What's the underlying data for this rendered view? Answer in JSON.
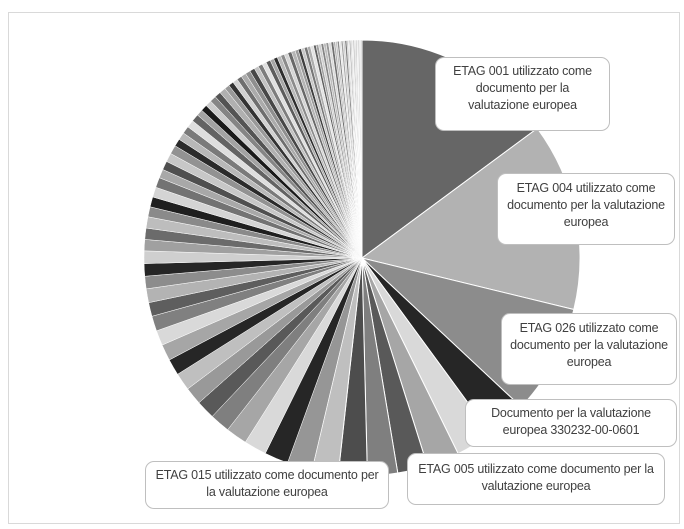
{
  "chart_data": {
    "type": "pie",
    "slices": [
      {
        "label": "ETAG 001 utilizzato come documento per la valutazione europea",
        "value": 16.0,
        "color": "#666666"
      },
      {
        "label": "ETAG 004 utilizzato come documento per la valutazione europea",
        "value": 15.0,
        "color": "#b2b2b2"
      },
      {
        "label": "ETAG 026 utilizzato come documento per la valutazione europea",
        "value": 8.8,
        "color": "#8c8c8c"
      },
      {
        "label": "Documento per la valutazione europea 330232-00-0601",
        "value": 3.2,
        "color": "#262626"
      },
      {
        "label": "ETAG 005 utilizzato come documento per la valutazione europea",
        "value": 3.0,
        "color": "#d9d9d9"
      },
      {
        "label": "",
        "value": 2.6,
        "color": "#a6a6a6"
      },
      {
        "label": "",
        "value": 2.4,
        "color": "#595959"
      },
      {
        "label": "",
        "value": 2.4,
        "color": "#7f7f7f"
      },
      {
        "label": "ETAG 015 utilizzato come documento per la valutazione europea",
        "value": 2.3,
        "color": "#4d4d4d"
      },
      {
        "label": "",
        "value": 2.1,
        "color": "#bfbfbf"
      },
      {
        "label": "",
        "value": 2.0,
        "color": "#969696"
      },
      {
        "label": "",
        "value": 1.9,
        "color": "#262626"
      },
      {
        "label": "",
        "value": 1.8,
        "color": "#d9d9d9"
      },
      {
        "label": "",
        "value": 1.7,
        "color": "#a6a6a6"
      },
      {
        "label": "",
        "value": 1.6,
        "color": "#7f7f7f"
      },
      {
        "label": "",
        "value": 1.5,
        "color": "#595959"
      },
      {
        "label": "",
        "value": 1.4,
        "color": "#999999"
      },
      {
        "label": "",
        "value": 1.4,
        "color": "#bfbfbf"
      },
      {
        "label": "",
        "value": 1.3,
        "color": "#262626"
      },
      {
        "label": "",
        "value": 1.3,
        "color": "#a6a6a6"
      },
      {
        "label": "",
        "value": 1.2,
        "color": "#d9d9d9"
      },
      {
        "label": "",
        "value": 1.2,
        "color": "#808080"
      },
      {
        "label": "",
        "value": 1.1,
        "color": "#5e5e5e"
      },
      {
        "label": "",
        "value": 1.1,
        "color": "#b3b3b3"
      },
      {
        "label": "",
        "value": 1.0,
        "color": "#8c8c8c"
      },
      {
        "label": "",
        "value": 1.0,
        "color": "#262626"
      },
      {
        "label": "",
        "value": 1.0,
        "color": "#cfcfcf"
      },
      {
        "label": "",
        "value": 0.9,
        "color": "#a0a0a0"
      },
      {
        "label": "",
        "value": 0.9,
        "color": "#6b6b6b"
      },
      {
        "label": "",
        "value": 0.9,
        "color": "#bdbdbd"
      },
      {
        "label": "",
        "value": 0.8,
        "color": "#8a8a8a"
      },
      {
        "label": "",
        "value": 0.8,
        "color": "#1f1f1f"
      },
      {
        "label": "",
        "value": 0.8,
        "color": "#d4d4d4"
      },
      {
        "label": "",
        "value": 0.8,
        "color": "#737373"
      },
      {
        "label": "",
        "value": 0.7,
        "color": "#a8a8a8"
      },
      {
        "label": "",
        "value": 0.7,
        "color": "#4f4f4f"
      },
      {
        "label": "",
        "value": 0.7,
        "color": "#c7c7c7"
      },
      {
        "label": "",
        "value": 0.7,
        "color": "#929292"
      },
      {
        "label": "",
        "value": 0.6,
        "color": "#2b2b2b"
      },
      {
        "label": "",
        "value": 0.6,
        "color": "#b8b8b8"
      },
      {
        "label": "",
        "value": 0.6,
        "color": "#7a7a7a"
      },
      {
        "label": "",
        "value": 0.6,
        "color": "#dedede"
      },
      {
        "label": "",
        "value": 0.6,
        "color": "#636363"
      },
      {
        "label": "",
        "value": 0.5,
        "color": "#a3a3a3"
      },
      {
        "label": "",
        "value": 0.5,
        "color": "#1a1a1a"
      },
      {
        "label": "",
        "value": 0.5,
        "color": "#cccccc"
      },
      {
        "label": "",
        "value": 0.5,
        "color": "#858585"
      },
      {
        "label": "",
        "value": 0.5,
        "color": "#545454"
      },
      {
        "label": "",
        "value": 0.5,
        "color": "#b0b0b0"
      },
      {
        "label": "",
        "value": 0.4,
        "color": "#999999"
      },
      {
        "label": "",
        "value": 0.4,
        "color": "#333333"
      },
      {
        "label": "",
        "value": 0.4,
        "color": "#d1d1d1"
      },
      {
        "label": "",
        "value": 0.4,
        "color": "#6e6e6e"
      },
      {
        "label": "",
        "value": 0.4,
        "color": "#ababab"
      },
      {
        "label": "",
        "value": 0.4,
        "color": "#8f8f8f"
      },
      {
        "label": "",
        "value": 0.4,
        "color": "#474747"
      },
      {
        "label": "",
        "value": 0.35,
        "color": "#c2c2c2"
      },
      {
        "label": "",
        "value": 0.35,
        "color": "#7d7d7d"
      },
      {
        "label": "",
        "value": 0.35,
        "color": "#e0e0e0"
      },
      {
        "label": "",
        "value": 0.35,
        "color": "#5c5c5c"
      },
      {
        "label": "",
        "value": 0.3,
        "color": "#a6a6a6"
      },
      {
        "label": "",
        "value": 0.3,
        "color": "#2e2e2e"
      },
      {
        "label": "",
        "value": 0.3,
        "color": "#bababa"
      },
      {
        "label": "",
        "value": 0.3,
        "color": "#8c8c8c"
      },
      {
        "label": "",
        "value": 0.3,
        "color": "#d6d6d6"
      },
      {
        "label": "",
        "value": 0.3,
        "color": "#696969"
      },
      {
        "label": "",
        "value": 0.3,
        "color": "#b5b5b5"
      },
      {
        "label": "",
        "value": 0.25,
        "color": "#9c9c9c"
      },
      {
        "label": "",
        "value": 0.25,
        "color": "#404040"
      },
      {
        "label": "",
        "value": 0.25,
        "color": "#c9c9c9"
      },
      {
        "label": "",
        "value": 0.25,
        "color": "#787878"
      },
      {
        "label": "",
        "value": 0.25,
        "color": "#adadad"
      },
      {
        "label": "",
        "value": 0.25,
        "color": "#e3e3e3"
      },
      {
        "label": "",
        "value": 0.2,
        "color": "#616161"
      },
      {
        "label": "",
        "value": 0.2,
        "color": "#a1a1a1"
      },
      {
        "label": "",
        "value": 0.2,
        "color": "#cfcfcf"
      },
      {
        "label": "",
        "value": 0.2,
        "color": "#858585"
      },
      {
        "label": "",
        "value": 0.2,
        "color": "#bdbdbd"
      },
      {
        "label": "",
        "value": 0.2,
        "color": "#969696"
      },
      {
        "label": "",
        "value": 0.2,
        "color": "#dbdbdb"
      },
      {
        "label": "",
        "value": 0.2,
        "color": "#707070"
      },
      {
        "label": "",
        "value": 0.15,
        "color": "#b0b0b0"
      },
      {
        "label": "",
        "value": 0.15,
        "color": "#c4c4c4"
      },
      {
        "label": "",
        "value": 0.15,
        "color": "#8a8a8a"
      },
      {
        "label": "",
        "value": 0.15,
        "color": "#e6e6e6"
      },
      {
        "label": "",
        "value": 0.15,
        "color": "#a3a3a3"
      },
      {
        "label": "",
        "value": 0.15,
        "color": "#d1d1d1"
      },
      {
        "label": "",
        "value": 0.15,
        "color": "#7a7a7a"
      },
      {
        "label": "",
        "value": 0.1,
        "color": "#bababa"
      },
      {
        "label": "",
        "value": 0.1,
        "color": "#dedede"
      },
      {
        "label": "",
        "value": 0.1,
        "color": "#999999"
      },
      {
        "label": "",
        "value": 0.1,
        "color": "#cccccc"
      },
      {
        "label": "",
        "value": 0.1,
        "color": "#e8e8e8"
      },
      {
        "label": "",
        "value": 0.1,
        "color": "#adadad"
      },
      {
        "label": "",
        "value": 0.1,
        "color": "#d9d9d9"
      },
      {
        "label": "",
        "value": 0.1,
        "color": "#c2c2c2"
      },
      {
        "label": "",
        "value": 0.1,
        "color": "#ebebeb"
      },
      {
        "label": "",
        "value": 0.1,
        "color": "#b8b8b8"
      },
      {
        "label": "",
        "value": 0.1,
        "color": "#e0e0e0"
      },
      {
        "label": "",
        "value": 0.1,
        "color": "#d4d4d4"
      }
    ],
    "data_labels": [
      {
        "slice": 0,
        "text": "ETAG 001 utilizzato come documento per la valutazione europea"
      },
      {
        "slice": 1,
        "text": "ETAG 004 utilizzato come documento per la valutazione europea"
      },
      {
        "slice": 2,
        "text": "ETAG 026 utilizzato come documento per la valutazione europea"
      },
      {
        "slice": 3,
        "text": "Documento per la valutazione europea 330232-00-0601"
      },
      {
        "slice": 4,
        "text": "ETAG 005 utilizzato come documento per la valutazione europea"
      },
      {
        "slice": 8,
        "text": "ETAG 015 utilizzato come documento per la valutazione europea"
      }
    ],
    "title": "",
    "legend": "none",
    "colors": {
      "border": "#d9d9d9",
      "callout_border": "#bfbfbf",
      "callout_text": "#404040",
      "slice_separator": "#ffffff"
    }
  }
}
